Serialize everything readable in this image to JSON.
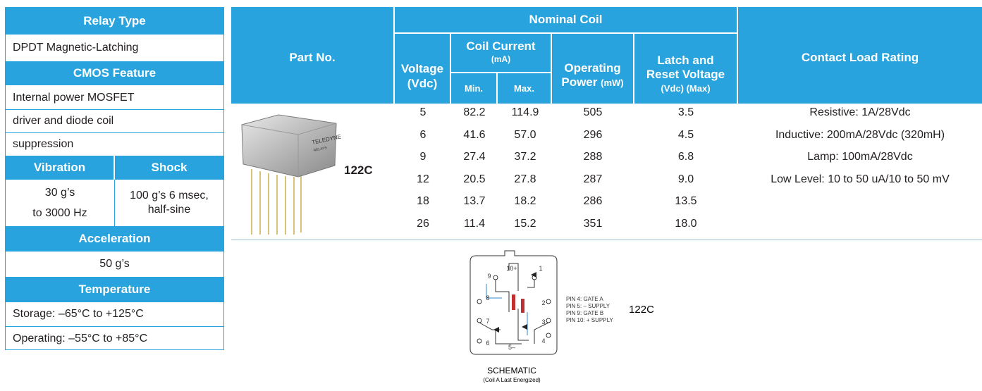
{
  "specs": {
    "relay_type": {
      "header": "Relay Type",
      "value": "DPDT Magnetic-Latching"
    },
    "cmos_feature": {
      "header": "CMOS Feature",
      "lines": [
        "Internal power MOSFET",
        "driver and diode coil",
        "suppression"
      ]
    },
    "vibration": {
      "header": "Vibration",
      "lines": [
        "30 g’s",
        "to 3000 Hz"
      ]
    },
    "shock": {
      "header": "Shock",
      "lines": [
        "100 g’s 6 msec,",
        "half-sine"
      ]
    },
    "acceleration": {
      "header": "Acceleration",
      "value": "50 g’s"
    },
    "temperature": {
      "header": "Temperature",
      "lines": [
        "Storage:  –65°C to +125°C",
        "Operating:  –55°C to +85°C"
      ]
    }
  },
  "table": {
    "headers": {
      "part_no": "Part No.",
      "nominal_coil": "Nominal Coil",
      "voltage": [
        "Voltage",
        "(Vdc)"
      ],
      "coil_current": [
        "Coil Current",
        "(mA)"
      ],
      "min": "Min.",
      "max": "Max.",
      "operating_power": [
        "Operating",
        "Power",
        "(mW)"
      ],
      "latch_reset": [
        "Latch and",
        "Reset Voltage",
        "(Vdc) (Max)"
      ],
      "contact_load": "Contact Load Rating"
    },
    "photo_label": [
      "TELEDYNE",
      "RELAYS"
    ],
    "part_no": "122C",
    "rows": [
      [
        "5",
        "82.2",
        "114.9",
        "505",
        "3.5"
      ],
      [
        "6",
        "41.6",
        "57.0",
        "296",
        "4.5"
      ],
      [
        "9",
        "27.4",
        "37.2",
        "288",
        "6.8"
      ],
      [
        "12",
        "20.5",
        "27.8",
        "287",
        "9.0"
      ],
      [
        "18",
        "13.7",
        "18.2",
        "286",
        "13.5"
      ],
      [
        "26",
        "11.4",
        "15.2",
        "351",
        "18.0"
      ]
    ],
    "contact_load": [
      "Resistive: 1A/28Vdc",
      "Inductive: 200mA/28Vdc (320mH)",
      "Lamp: 100mA/28Vdc",
      "Low Level: 10 to 50 uA/10 to 50 mV"
    ]
  },
  "schematic": {
    "pins": [
      "10+",
      "1",
      "9",
      "2",
      "8",
      "3",
      "7",
      "4",
      "6",
      "5–"
    ],
    "notes": [
      "PIN 4: GATE A",
      "PIN 5: – SUPPLY",
      "PIN 9: GATE B",
      "PIN 10: + SUPPLY"
    ],
    "part": "122C",
    "caption": "SCHEMATIC",
    "subcaption": "(Coil A Last Energized)"
  }
}
